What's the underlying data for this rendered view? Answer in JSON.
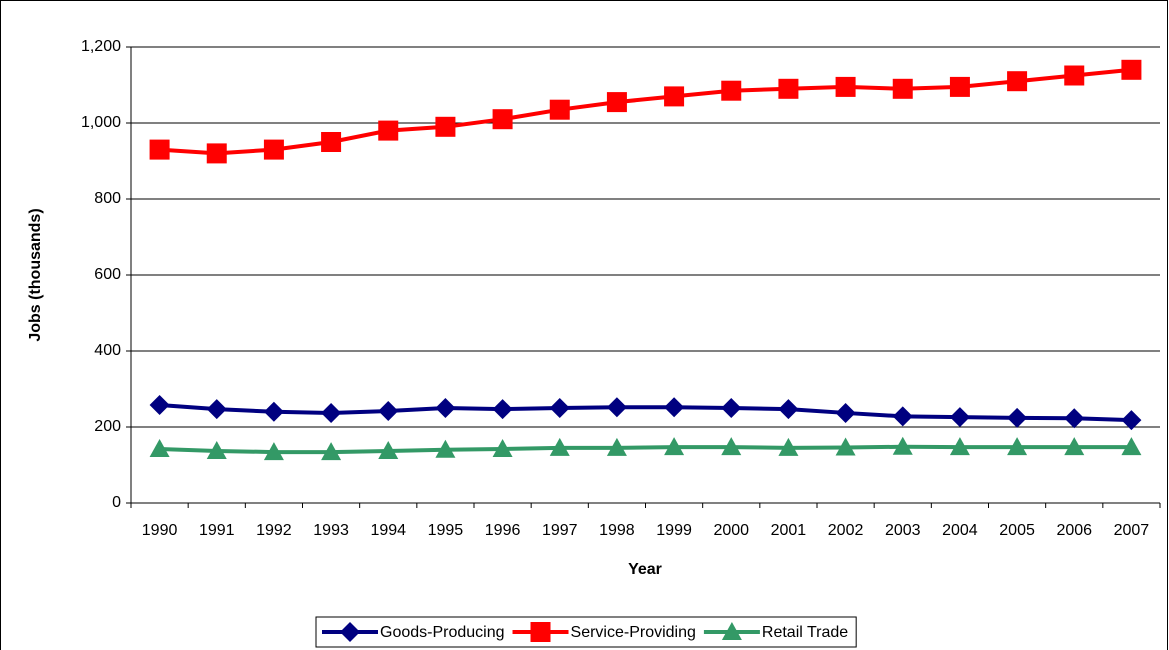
{
  "chart_data": {
    "type": "line",
    "y_label": "Jobs (thousands)",
    "x_label": "Year",
    "categories": [
      "1990",
      "1991",
      "1992",
      "1993",
      "1994",
      "1995",
      "1996",
      "1997",
      "1998",
      "1999",
      "2000",
      "2001",
      "2002",
      "2003",
      "2004",
      "2005",
      "2006",
      "2007"
    ],
    "series": [
      {
        "name": "Goods-Producing",
        "color": "#000080",
        "marker": "diamond",
        "values": [
          258,
          247,
          240,
          237,
          242,
          250,
          247,
          250,
          252,
          252,
          250,
          247,
          237,
          228,
          226,
          224,
          223,
          218
        ]
      },
      {
        "name": "Service-Providing",
        "color": "#ff0000",
        "marker": "square",
        "values": [
          930,
          920,
          930,
          950,
          980,
          990,
          1010,
          1035,
          1055,
          1070,
          1085,
          1090,
          1095,
          1090,
          1095,
          1110,
          1125,
          1140
        ]
      },
      {
        "name": "Retail Trade",
        "color": "#339966",
        "marker": "triangle",
        "values": [
          142,
          137,
          134,
          134,
          137,
          140,
          142,
          145,
          145,
          147,
          147,
          145,
          146,
          148,
          147,
          147,
          147,
          147
        ]
      }
    ],
    "ylim": [
      0,
      1200
    ],
    "yticks": [
      0,
      200,
      400,
      600,
      800,
      {
        "value": 1000,
        "label": "1,000"
      },
      {
        "value": 1200,
        "label": "1,200"
      }
    ],
    "grid": true,
    "legend": "bottom"
  }
}
